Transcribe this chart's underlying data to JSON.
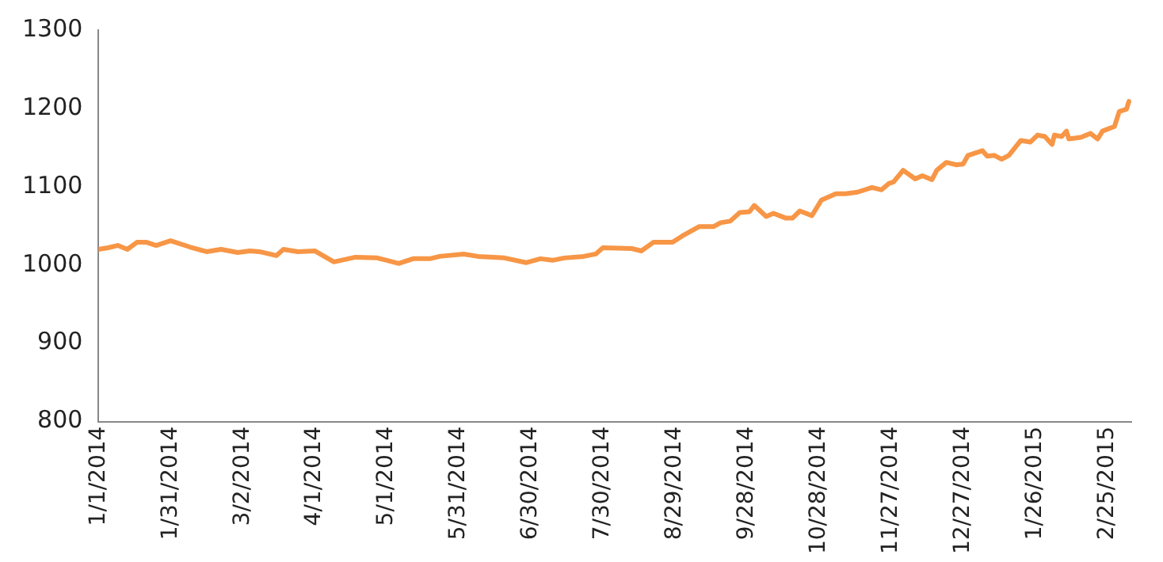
{
  "chart_data": {
    "type": "line",
    "x": [
      "2014-01-01",
      "2014-01-05",
      "2014-01-09",
      "2014-01-13",
      "2014-01-17",
      "2014-01-21",
      "2014-01-25",
      "2014-01-31",
      "2014-02-08",
      "2014-02-15",
      "2014-02-21",
      "2014-02-28",
      "2014-03-05",
      "2014-03-09",
      "2014-03-16",
      "2014-03-19",
      "2014-03-25",
      "2014-04-01",
      "2014-04-05",
      "2014-04-09",
      "2014-04-18",
      "2014-04-27",
      "2014-05-01",
      "2014-05-06",
      "2014-05-12",
      "2014-05-19",
      "2014-05-23",
      "2014-06-02",
      "2014-06-08",
      "2014-06-19",
      "2014-06-28",
      "2014-07-04",
      "2014-07-09",
      "2014-07-14",
      "2014-07-22",
      "2014-07-27",
      "2014-07-30",
      "2014-08-11",
      "2014-08-15",
      "2014-08-20",
      "2014-08-28",
      "2014-09-01",
      "2014-09-08",
      "2014-09-14",
      "2014-09-17",
      "2014-09-21",
      "2014-09-25",
      "2014-09-29",
      "2014-10-01",
      "2014-10-06",
      "2014-10-09",
      "2014-10-14",
      "2014-10-17",
      "2014-10-20",
      "2014-10-25",
      "2014-10-29",
      "2014-11-04",
      "2014-11-08",
      "2014-11-13",
      "2014-11-19",
      "2014-11-23",
      "2014-11-26",
      "2014-11-28",
      "2014-12-02",
      "2014-12-07",
      "2014-12-10",
      "2014-12-14",
      "2014-12-16",
      "2014-12-20",
      "2014-12-24",
      "2014-12-27",
      "2014-12-29",
      "2015-01-04",
      "2015-01-06",
      "2015-01-09",
      "2015-01-12",
      "2015-01-15",
      "2015-01-20",
      "2015-01-24",
      "2015-01-27",
      "2015-01-30",
      "2015-02-02",
      "2015-02-03",
      "2015-02-06",
      "2015-02-08",
      "2015-02-09",
      "2015-02-14",
      "2015-02-18",
      "2015-02-21",
      "2015-02-23",
      "2015-02-28",
      "2015-03-02",
      "2015-03-05",
      "2015-03-06"
    ],
    "series": [
      {
        "color": "#f79646",
        "values": [
          1020,
          1022,
          1025,
          1020,
          1029,
          1029,
          1025,
          1031,
          1023,
          1017,
          1020,
          1016,
          1018,
          1017,
          1012,
          1020,
          1017,
          1018,
          1011,
          1004,
          1010,
          1009,
          1006,
          1002,
          1008,
          1008,
          1011,
          1014,
          1011,
          1009,
          1003,
          1008,
          1006,
          1009,
          1011,
          1014,
          1022,
          1021,
          1018,
          1029,
          1029,
          1037,
          1049,
          1049,
          1054,
          1056,
          1067,
          1068,
          1076,
          1062,
          1066,
          1060,
          1060,
          1069,
          1063,
          1083,
          1091,
          1091,
          1093,
          1099,
          1096,
          1104,
          1106,
          1121,
          1110,
          1114,
          1109,
          1121,
          1131,
          1128,
          1129,
          1140,
          1146,
          1139,
          1140,
          1135,
          1140,
          1159,
          1157,
          1166,
          1164,
          1154,
          1166,
          1164,
          1171,
          1161,
          1163,
          1168,
          1161,
          1171,
          1177,
          1196,
          1199,
          1209
        ]
      }
    ],
    "xlim": [
      "2014-01-01",
      "2015-03-07"
    ],
    "xticks": [
      {
        "value": "2014-01-01",
        "label": "1/1/2014"
      },
      {
        "value": "2014-01-31",
        "label": "1/31/2014"
      },
      {
        "value": "2014-03-02",
        "label": "3/2/2014"
      },
      {
        "value": "2014-04-01",
        "label": "4/1/2014"
      },
      {
        "value": "2014-05-01",
        "label": "5/1/2014"
      },
      {
        "value": "2014-05-31",
        "label": "5/31/2014"
      },
      {
        "value": "2014-06-30",
        "label": "6/30/2014"
      },
      {
        "value": "2014-07-30",
        "label": "7/30/2014"
      },
      {
        "value": "2014-08-29",
        "label": "8/29/2014"
      },
      {
        "value": "2014-09-28",
        "label": "9/28/2014"
      },
      {
        "value": "2014-10-28",
        "label": "10/28/2014"
      },
      {
        "value": "2014-11-27",
        "label": "11/27/2014"
      },
      {
        "value": "2014-12-27",
        "label": "12/27/2014"
      },
      {
        "value": "2015-01-26",
        "label": "1/26/2015"
      },
      {
        "value": "2015-02-25",
        "label": "2/25/2015"
      }
    ],
    "ylim": [
      800,
      1300
    ],
    "yticks": [
      800,
      900,
      1000,
      1100,
      1200,
      1300
    ],
    "grid": false,
    "legend": false,
    "marker": "none",
    "line_style": "solid"
  }
}
